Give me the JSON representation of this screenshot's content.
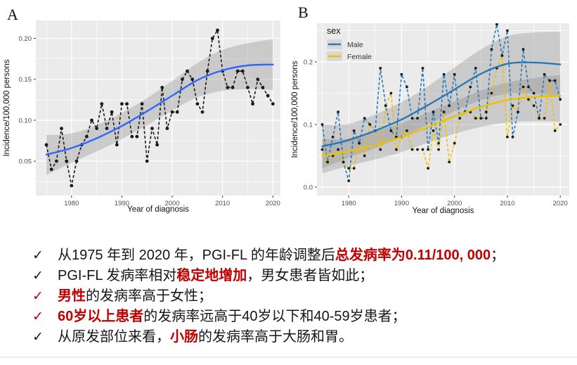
{
  "chart_data": [
    {
      "id": "A",
      "type": "line",
      "panel_label": "A",
      "xlabel": "Year of diagnosis",
      "ylabel": "Incidence/100,000 persons",
      "xlim": [
        1972.9,
        2021.5
      ],
      "ylim": [
        0.008,
        0.222
      ],
      "xticks": [
        1980,
        1990,
        2000,
        2010,
        2020
      ],
      "xtick_labels": [
        "1980",
        "1990",
        "2000",
        "2010",
        "2020"
      ],
      "yticks": [
        0.05,
        0.1,
        0.15,
        0.2
      ],
      "ytick_labels": [
        "0.05",
        "0.10",
        "0.15",
        "0.20"
      ],
      "x_minor": [
        1975,
        1985,
        1995,
        2005,
        2015
      ],
      "y_minor": [
        0.025,
        0.075,
        0.125,
        0.175
      ],
      "panel_fill": "#EBEBEB",
      "grid_color": "#FFFFFF",
      "band_fill": "#7F7F7F",
      "band_opacity": 0.3,
      "years": [
        1975,
        1976,
        1977,
        1978,
        1979,
        1980,
        1981,
        1982,
        1983,
        1984,
        1985,
        1986,
        1987,
        1988,
        1989,
        1990,
        1991,
        1992,
        1993,
        1994,
        1995,
        1996,
        1997,
        1998,
        1999,
        2000,
        2001,
        2002,
        2003,
        2004,
        2005,
        2006,
        2007,
        2008,
        2009,
        2010,
        2011,
        2012,
        2013,
        2014,
        2015,
        2016,
        2017,
        2018,
        2019,
        2020
      ],
      "series": [
        {
          "name": "observed",
          "color": "#1a1a1a",
          "point_color": "#1a1a1a",
          "point_r": 2.4,
          "values": [
            0.07,
            0.04,
            0.05,
            0.09,
            0.05,
            0.02,
            0.05,
            0.07,
            0.08,
            0.1,
            0.09,
            0.12,
            0.09,
            0.11,
            0.07,
            0.12,
            0.12,
            0.08,
            0.08,
            0.12,
            0.05,
            0.09,
            0.07,
            0.14,
            0.09,
            0.11,
            0.11,
            0.15,
            0.16,
            0.15,
            0.12,
            0.11,
            0.16,
            0.2,
            0.21,
            0.16,
            0.14,
            0.14,
            0.16,
            0.16,
            0.14,
            0.12,
            0.15,
            0.14,
            0.13,
            0.12
          ]
        }
      ],
      "smooths": [
        {
          "name": "trend",
          "color": "#3366FF",
          "x": [
            1975,
            1980,
            1985,
            1990,
            1995,
            2000,
            2005,
            2010,
            2015,
            2020
          ],
          "y": [
            0.058,
            0.066,
            0.078,
            0.093,
            0.111,
            0.13,
            0.149,
            0.161,
            0.167,
            0.168
          ],
          "band_lower": [
            0.033,
            0.048,
            0.062,
            0.077,
            0.094,
            0.112,
            0.128,
            0.136,
            0.138,
            0.137
          ],
          "band_upper": [
            0.082,
            0.084,
            0.094,
            0.109,
            0.127,
            0.148,
            0.17,
            0.186,
            0.194,
            0.199
          ]
        }
      ]
    },
    {
      "id": "B",
      "type": "line",
      "panel_label": "B",
      "xlabel": "Year of diagnosis",
      "ylabel": "Incidence/100,000 persons",
      "xlim": [
        1974.0,
        2021.7
      ],
      "ylim": [
        -0.0135,
        0.2618
      ],
      "xticks": [
        1980,
        1990,
        2000,
        2010,
        2020
      ],
      "xtick_labels": [
        "1980",
        "1990",
        "2000",
        "2010",
        "2020"
      ],
      "yticks": [
        0.0,
        0.1,
        0.2
      ],
      "ytick_labels": [
        "0.0",
        "0.1",
        "0.2"
      ],
      "x_minor": [
        1975,
        1985,
        1995,
        2005,
        2015
      ],
      "y_minor": [
        0.05,
        0.15,
        0.25
      ],
      "panel_fill": "#EBEBEB",
      "grid_color": "#FFFFFF",
      "band_fill": "#7F7F7F",
      "band_opacity": 0.3,
      "legend": {
        "title": "sex",
        "items": [
          {
            "label": "Male",
            "color": "#2878B8"
          },
          {
            "label": "Female",
            "color": "#EFC000"
          }
        ]
      },
      "years": [
        1975,
        1976,
        1977,
        1978,
        1979,
        1980,
        1981,
        1982,
        1983,
        1984,
        1985,
        1986,
        1987,
        1988,
        1989,
        1990,
        1991,
        1992,
        1993,
        1994,
        1995,
        1996,
        1997,
        1998,
        1999,
        2000,
        2001,
        2002,
        2003,
        2004,
        2005,
        2006,
        2007,
        2008,
        2009,
        2010,
        2011,
        2012,
        2013,
        2014,
        2015,
        2016,
        2017,
        2018,
        2019,
        2020
      ],
      "series": [
        {
          "name": "Male",
          "color": "#2878B8",
          "point_color": "#1a1a1a",
          "point_r": 1.9,
          "values": [
            0.1,
            0.04,
            0.08,
            0.12,
            0.04,
            0.01,
            0.09,
            0.07,
            0.11,
            0.1,
            0.09,
            0.19,
            0.13,
            0.09,
            0.08,
            0.18,
            0.16,
            0.11,
            0.11,
            0.19,
            0.06,
            0.12,
            0.07,
            0.18,
            0.13,
            0.18,
            0.11,
            0.12,
            0.16,
            0.19,
            0.11,
            0.11,
            0.22,
            0.26,
            0.21,
            0.25,
            0.08,
            0.12,
            0.22,
            0.16,
            0.15,
            0.11,
            0.18,
            0.17,
            0.17,
            0.14
          ]
        },
        {
          "name": "Female",
          "color": "#EFC000",
          "point_color": "#1a1a1a",
          "point_r": 1.9,
          "values": [
            0.06,
            0.04,
            0.05,
            0.06,
            0.04,
            0.03,
            0.03,
            0.07,
            0.05,
            0.1,
            0.09,
            0.06,
            0.13,
            0.15,
            0.06,
            0.08,
            0.09,
            0.06,
            0.06,
            0.06,
            0.03,
            0.09,
            0.06,
            0.12,
            0.04,
            0.07,
            0.11,
            0.12,
            0.12,
            0.11,
            0.11,
            0.12,
            0.15,
            0.19,
            0.21,
            0.08,
            0.13,
            0.12,
            0.16,
            0.14,
            0.13,
            0.11,
            0.11,
            0.17,
            0.09,
            0.1
          ]
        }
      ],
      "smooths": [
        {
          "name": "Male",
          "color": "#2878B8",
          "x": [
            1975,
            1980,
            1985,
            1990,
            1995,
            2000,
            2005,
            2010,
            2015,
            2020
          ],
          "y": [
            0.065,
            0.075,
            0.09,
            0.108,
            0.131,
            0.156,
            0.181,
            0.197,
            0.199,
            0.196
          ],
          "band_lower": [
            0.03,
            0.047,
            0.062,
            0.08,
            0.1,
            0.121,
            0.139,
            0.149,
            0.149,
            0.146
          ],
          "band_upper": [
            0.1,
            0.101,
            0.116,
            0.136,
            0.161,
            0.191,
            0.22,
            0.241,
            0.247,
            0.248
          ]
        },
        {
          "name": "Female",
          "color": "#EFC000",
          "x": [
            1975,
            1980,
            1985,
            1990,
            1995,
            2000,
            2005,
            2010,
            2015,
            2020
          ],
          "y": [
            0.05,
            0.057,
            0.067,
            0.08,
            0.096,
            0.113,
            0.128,
            0.139,
            0.144,
            0.146
          ],
          "band_lower": [
            0.022,
            0.034,
            0.044,
            0.056,
            0.071,
            0.085,
            0.096,
            0.103,
            0.105,
            0.104
          ],
          "band_upper": [
            0.076,
            0.078,
            0.089,
            0.102,
            0.119,
            0.137,
            0.154,
            0.167,
            0.174,
            0.179
          ]
        }
      ]
    }
  ],
  "bullets": {
    "check_glyph": "✓",
    "em_color": "#c00000",
    "items": [
      {
        "check_color": "#1a1a1a",
        "segments": [
          {
            "text": "从1975 年到 2020 年，PGI-FL 的年龄调整后",
            "style": "normal"
          },
          {
            "text": "总发病率为0.11/100, 000",
            "style": "em"
          },
          {
            "text": "；",
            "style": "normal"
          }
        ]
      },
      {
        "check_color": "#1a1a1a",
        "segments": [
          {
            "text": "PGI-FL 发病率相对",
            "style": "normal"
          },
          {
            "text": "稳定地增加",
            "style": "em"
          },
          {
            "text": "，男女患者皆如此；",
            "style": "normal"
          }
        ]
      },
      {
        "check_color": "#c00000",
        "segments": [
          {
            "text": "男性",
            "style": "em"
          },
          {
            "text": "的发病率高于女性；",
            "style": "normal"
          }
        ]
      },
      {
        "check_color": "#c00000",
        "segments": [
          {
            "text": "60岁以上患者",
            "style": "em"
          },
          {
            "text": "的发病率远高于40岁以下和40-59岁患者；",
            "style": "normal"
          }
        ]
      },
      {
        "check_color": "#1a1a1a",
        "segments": [
          {
            "text": "从原发部位来看，",
            "style": "normal"
          },
          {
            "text": "小肠",
            "style": "em"
          },
          {
            "text": "的发病率高于大肠和胃。",
            "style": "normal"
          }
        ]
      }
    ]
  }
}
